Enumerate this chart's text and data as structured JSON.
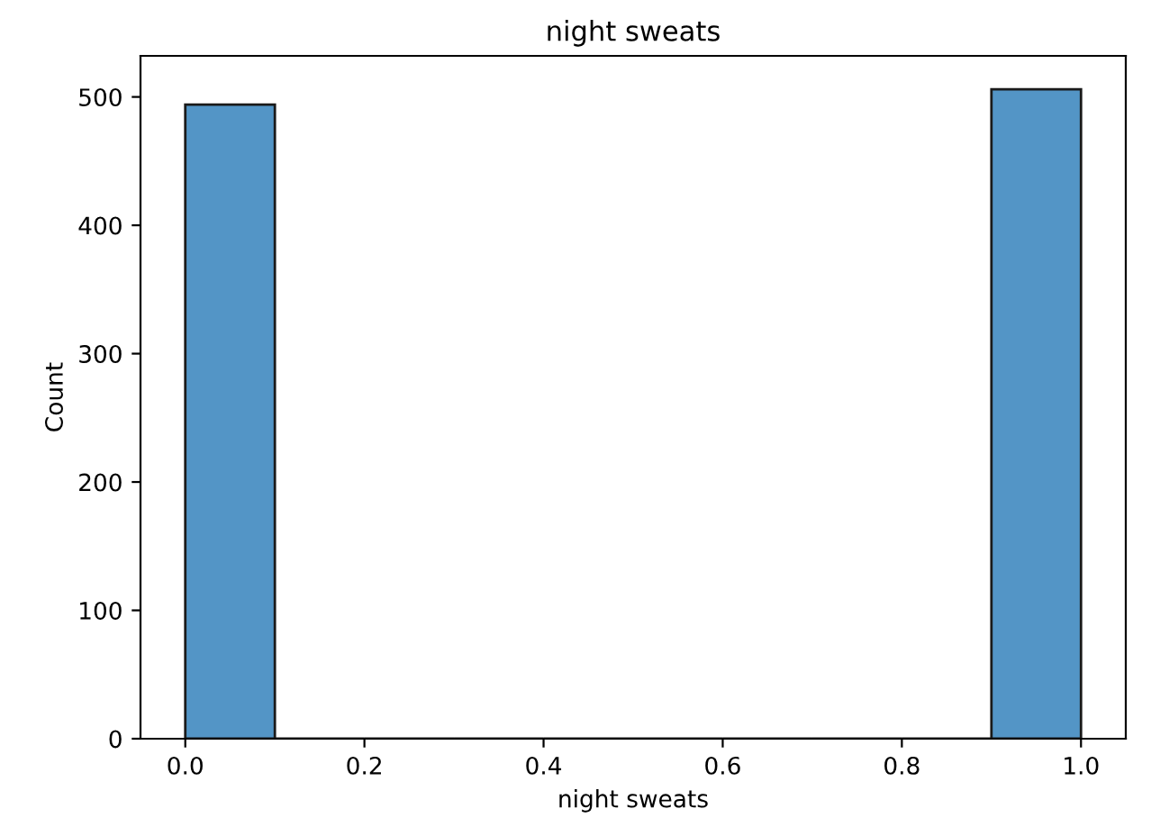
{
  "chart_data": {
    "type": "histogram",
    "title": "night sweats",
    "xlabel": "night sweats",
    "ylabel": "Count",
    "bins": [
      0.0,
      0.1,
      0.2,
      0.3,
      0.4,
      0.5,
      0.6,
      0.7,
      0.8,
      0.9,
      1.0
    ],
    "values": [
      494,
      0,
      0,
      0,
      0,
      0,
      0,
      0,
      0,
      506
    ],
    "color": "#5395c6",
    "xlim": [
      -0.05,
      1.05
    ],
    "xticks": [
      {
        "value": 0,
        "label": "0.0"
      },
      0.2,
      0.4,
      0.6,
      0.8,
      {
        "value": 1,
        "label": "1.0"
      }
    ],
    "ylim": [
      0,
      532
    ],
    "yticks": [
      0,
      100,
      200,
      300,
      400,
      500
    ],
    "grid": false
  }
}
